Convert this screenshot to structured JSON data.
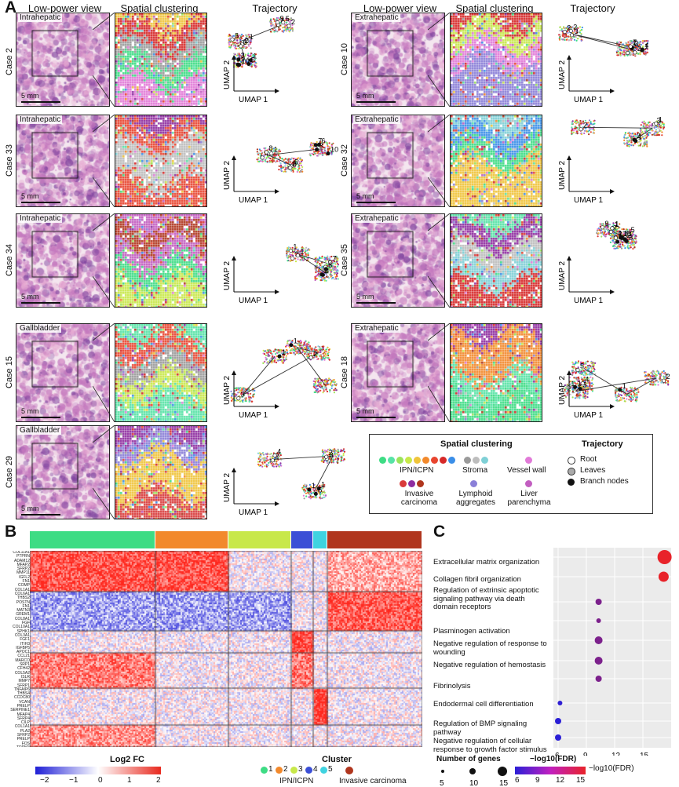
{
  "panels": {
    "a": "A",
    "b": "B",
    "c": "C"
  },
  "headers": {
    "low": "Low-power view",
    "spatial": "Spatial clustering",
    "traj": "Trajectory"
  },
  "scalebar": "5 mm",
  "umap": {
    "x": "UMAP 1",
    "y": "UMAP 2"
  },
  "cases": [
    {
      "case": "Case 2",
      "site": "Intrahepatic",
      "nodes": [
        "3",
        "1",
        "2",
        "1",
        "2",
        "4",
        "5",
        "6",
        "5",
        "7",
        "8",
        "9",
        "10"
      ]
    },
    {
      "case": "Case 33",
      "site": "Intrahepatic",
      "nodes": [
        "3",
        "4",
        "5",
        "6",
        "1",
        "2",
        "7",
        "8",
        "9",
        "10"
      ]
    },
    {
      "case": "Case 34",
      "site": "Intrahepatic",
      "nodes": [
        "2",
        "3",
        "5",
        "4",
        "1",
        "7",
        "6",
        "1"
      ]
    },
    {
      "case": "Case 15",
      "site": "Gallbladder",
      "nodes": [
        "1",
        "3",
        "2",
        "1"
      ]
    },
    {
      "case": "Case 29",
      "site": "Gallbladder",
      "nodes": [
        "1",
        "3",
        "2",
        "5",
        "2",
        "4",
        "1"
      ]
    },
    {
      "case": "Case 10",
      "site": "Extrahepatic",
      "nodes": [
        "3",
        "2",
        "4",
        "1",
        "2",
        "7",
        "4",
        "3",
        "2",
        "1"
      ]
    },
    {
      "case": "Case 32",
      "site": "Extrahepatic",
      "nodes": [
        "2",
        "3",
        "2",
        "1",
        "1"
      ]
    },
    {
      "case": "Case 35",
      "site": "Extrahepatic",
      "nodes": [
        "6",
        "5",
        "9",
        "8",
        "4",
        "7",
        "3",
        "3",
        "1",
        "1",
        "2",
        "1",
        "2"
      ]
    },
    {
      "case": "Case 18",
      "site": "Extrahepatic",
      "nodes": [
        "3",
        "1",
        "2",
        "1",
        "5",
        "4",
        "1"
      ]
    }
  ],
  "legend": {
    "spatial_title": "Spatial clustering",
    "traj_title": "Trajectory",
    "ipn": "IPN/ICPN",
    "stroma": "Stroma",
    "vessel": "Vessel wall",
    "invasive": "Invasive carcinoma",
    "lymphoid": "Lymphoid aggregates",
    "liver": "Liver parenchyma",
    "root": "Root",
    "leaves": "Leaves",
    "branch": "Branch nodes",
    "ipn_colors": [
      "#3ddc84",
      "#57e3a6",
      "#9be35b",
      "#c8e84a",
      "#f0c43a",
      "#f2892c",
      "#e8452f",
      "#d62828",
      "#3a8ee8"
    ],
    "stroma_colors": [
      "#9a9a9a",
      "#bdbdbd",
      "#7fd0d6"
    ],
    "vessel_color": "#e17ad8",
    "invasive_colors": [
      "#d93a3a",
      "#8e2da0",
      "#b0361e"
    ],
    "lymphoid_color": "#8a7fd8",
    "liver_color": "#c25ec0"
  },
  "heatmap": {
    "genes": [
      "COL11A1",
      "PTPRN",
      "ADAM12",
      "MFAP2",
      "SFRP2",
      "MMP11",
      "IGFL2",
      "FN1",
      "COMP",
      "COL1A1",
      "COL6A1",
      "THBS2",
      "POSTN",
      "FN1",
      "MATN3",
      "GREM1",
      "COL8A1",
      "FGF",
      "COL10A1",
      "SPHK1",
      "COL3A1",
      "FGF1",
      "ITIH3",
      "IGFBP5",
      "APOC1",
      "CCL21",
      "MARCO",
      "SRP1",
      "CFH42",
      "COL5A2",
      "ISLR",
      "MMP7",
      "SFRP1",
      "TNFAIP6",
      "THBS4",
      "CCDC80",
      "VCAN",
      "PRELP",
      "SERPINE1",
      "MFAP4",
      "SFRP4",
      "CILP",
      "COL1A1",
      "PLA2",
      "SFRP2",
      "PRELP",
      "FOS",
      "TRPM3",
      "SRPX2",
      "THBS1"
    ],
    "legend_title": "Log2 FC",
    "ticks": [
      "−2",
      "−1",
      "0",
      "1",
      "2"
    ],
    "cluster_title": "Cluster",
    "cluster_items": [
      "1",
      "2",
      "3",
      "4",
      "5"
    ],
    "cluster_ipn": "IPN/ICPN",
    "cluster_inv": "Invasive carcinoma",
    "cluster_colors": [
      "#3ddc84",
      "#f2892c",
      "#c8e84a",
      "#3b4fd6",
      "#3fd3e0",
      "#b0361e"
    ]
  },
  "go": {
    "terms": [
      "Extracellular matrix organization",
      "Collagen fibril organization",
      "Regulation of extrinsic apoptotic signaling pathway via death domain receptors",
      "Plasminogen activation",
      "Negative regulation of response to wounding",
      "Negative regulation of hemostasis",
      "Fibrinolysis",
      "Endodermal cell differentiation",
      "Regulation of BMP signaling pathway",
      "Negative regulation of cellular response to growth factor stimulus"
    ],
    "xlabel": "−log10(FDR)",
    "xticks": [
      "6",
      "9",
      "12",
      "15"
    ],
    "size_title": "Number of genes",
    "size_ticks": [
      "5",
      "10",
      "15"
    ],
    "color_title": "−log10(FDR)",
    "color_ticks": [
      "6",
      "9",
      "12",
      "15"
    ]
  },
  "chart_data": {
    "type": "scatter",
    "title": "",
    "xlabel": "−log10(FDR)",
    "ylabel": "",
    "xlim": [
      5.5,
      18
    ],
    "categories": [
      "Extracellular matrix organization",
      "Collagen fibril organization",
      "Regulation of extrinsic apoptotic signaling pathway via death domain receptors",
      "Plasminogen activation",
      "Negative regulation of response to wounding",
      "Negative regulation of hemostasis",
      "Fibrinolysis",
      "Endodermal cell differentiation",
      "Regulation of BMP signaling pathway",
      "Negative regulation of cellular response to growth factor stimulus"
    ],
    "x": [
      17.3,
      17.2,
      10.3,
      10.3,
      10.3,
      10.3,
      10.3,
      6.2,
      6.0,
      6.0
    ],
    "size": [
      16,
      11,
      6,
      4,
      8,
      8,
      6,
      4,
      6,
      6
    ],
    "grid": true
  }
}
